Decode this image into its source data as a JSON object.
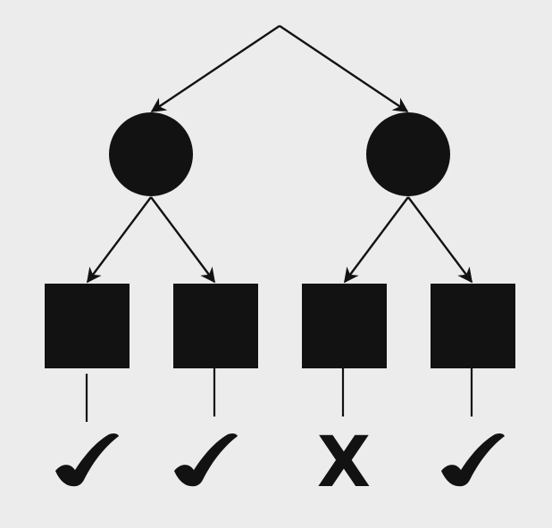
{
  "colors": {
    "background": "#ececec",
    "ink": "#121212"
  },
  "tree": {
    "root_shape": "point",
    "level1_shape": "circle",
    "level2_shape": "square",
    "level1_count": 2,
    "level2_per_parent": 2,
    "results": [
      {
        "symbol": "✓",
        "meaning": "check-icon"
      },
      {
        "symbol": "✓",
        "meaning": "check-icon"
      },
      {
        "symbol": "X",
        "meaning": "cross-icon"
      },
      {
        "symbol": "✓",
        "meaning": "check-icon"
      }
    ]
  }
}
